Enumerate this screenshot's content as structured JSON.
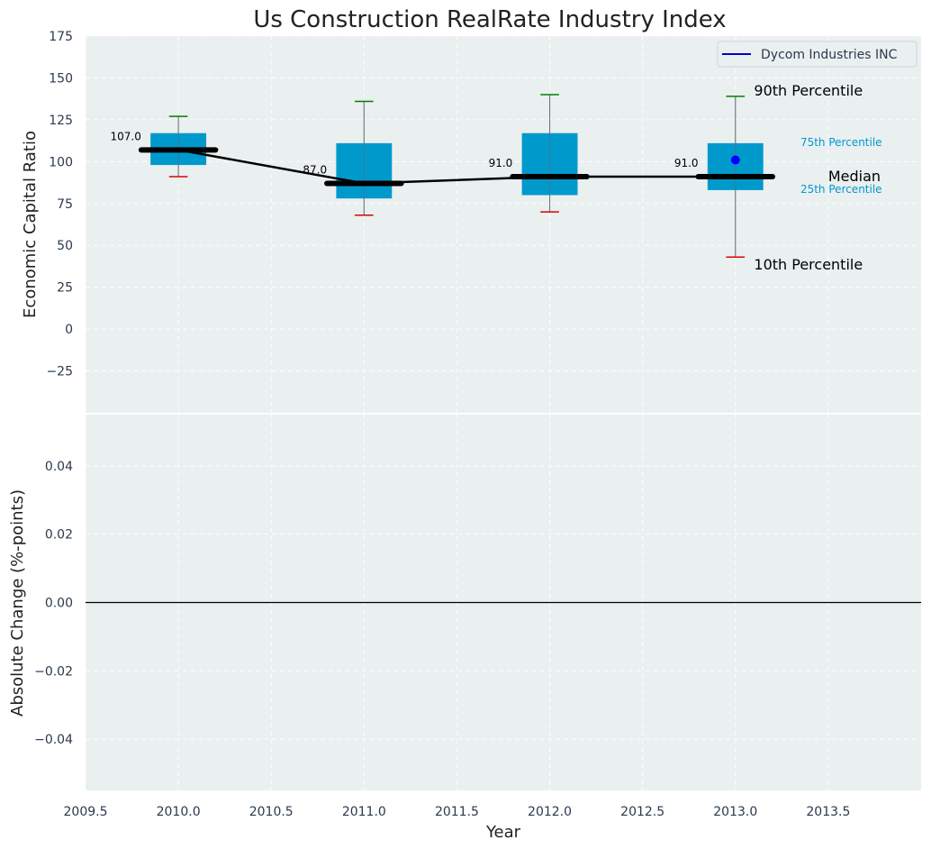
{
  "chart_data": [
    {
      "type": "box",
      "title": "Us Construction RealRate Industry Index",
      "ylabel": "Economic Capital Ratio",
      "xlim": [
        2009.5,
        2014.0
      ],
      "ylim": [
        -50,
        175
      ],
      "yticks": [
        -25,
        0,
        25,
        50,
        75,
        100,
        125,
        150,
        175
      ],
      "grid": true,
      "legend": {
        "position": "top-right",
        "entries": [
          {
            "label": "Dycom Industries INC",
            "color": "#0000cc"
          }
        ]
      },
      "boxes": [
        {
          "x": 2010,
          "p10": 91,
          "p25": 98,
          "median": 107,
          "p75": 117,
          "p90": 127,
          "median_label": "107.0"
        },
        {
          "x": 2011,
          "p10": 68,
          "p25": 78,
          "median": 87,
          "p75": 111,
          "p90": 136,
          "median_label": "87.0"
        },
        {
          "x": 2012,
          "p10": 70,
          "p25": 80,
          "median": 91,
          "p75": 117,
          "p90": 140,
          "median_label": "91.0"
        },
        {
          "x": 2013,
          "p10": 43,
          "p25": 83,
          "median": 91,
          "p75": 111,
          "p90": 139,
          "median_label": "91.0"
        }
      ],
      "company_points": [
        {
          "x": 2013,
          "y": 101
        }
      ],
      "annotations": {
        "p90": "90th Percentile",
        "p75": "75th Percentile",
        "median": "Median",
        "p25": "25th Percentile",
        "p10": "10th Percentile"
      },
      "colors": {
        "box": "#0099cc",
        "whisker_top": "#008000",
        "whisker_bottom": "#dd0000",
        "median": "#000000",
        "company": "#0000ff",
        "plot_bg": "#eaeff0"
      }
    },
    {
      "type": "line",
      "ylabel": "Absolute Change (%-points)",
      "xlabel": "Year",
      "xlim": [
        2009.5,
        2014.0
      ],
      "ylim": [
        -0.055,
        0.055
      ],
      "xticks": [
        2009.5,
        2010.0,
        2010.5,
        2011.0,
        2011.5,
        2012.0,
        2012.5,
        2013.0,
        2013.5
      ],
      "xtick_labels": [
        "2009.5",
        "2010.0",
        "2010.5",
        "2011.0",
        "2011.5",
        "2012.0",
        "2012.5",
        "2013.0",
        "2013.5"
      ],
      "yticks": [
        -0.04,
        -0.02,
        0.0,
        0.02,
        0.04
      ],
      "ytick_labels": [
        "−0.04",
        "−0.02",
        "0.00",
        "0.02",
        "0.04"
      ],
      "hline": 0.0,
      "grid": true
    }
  ]
}
